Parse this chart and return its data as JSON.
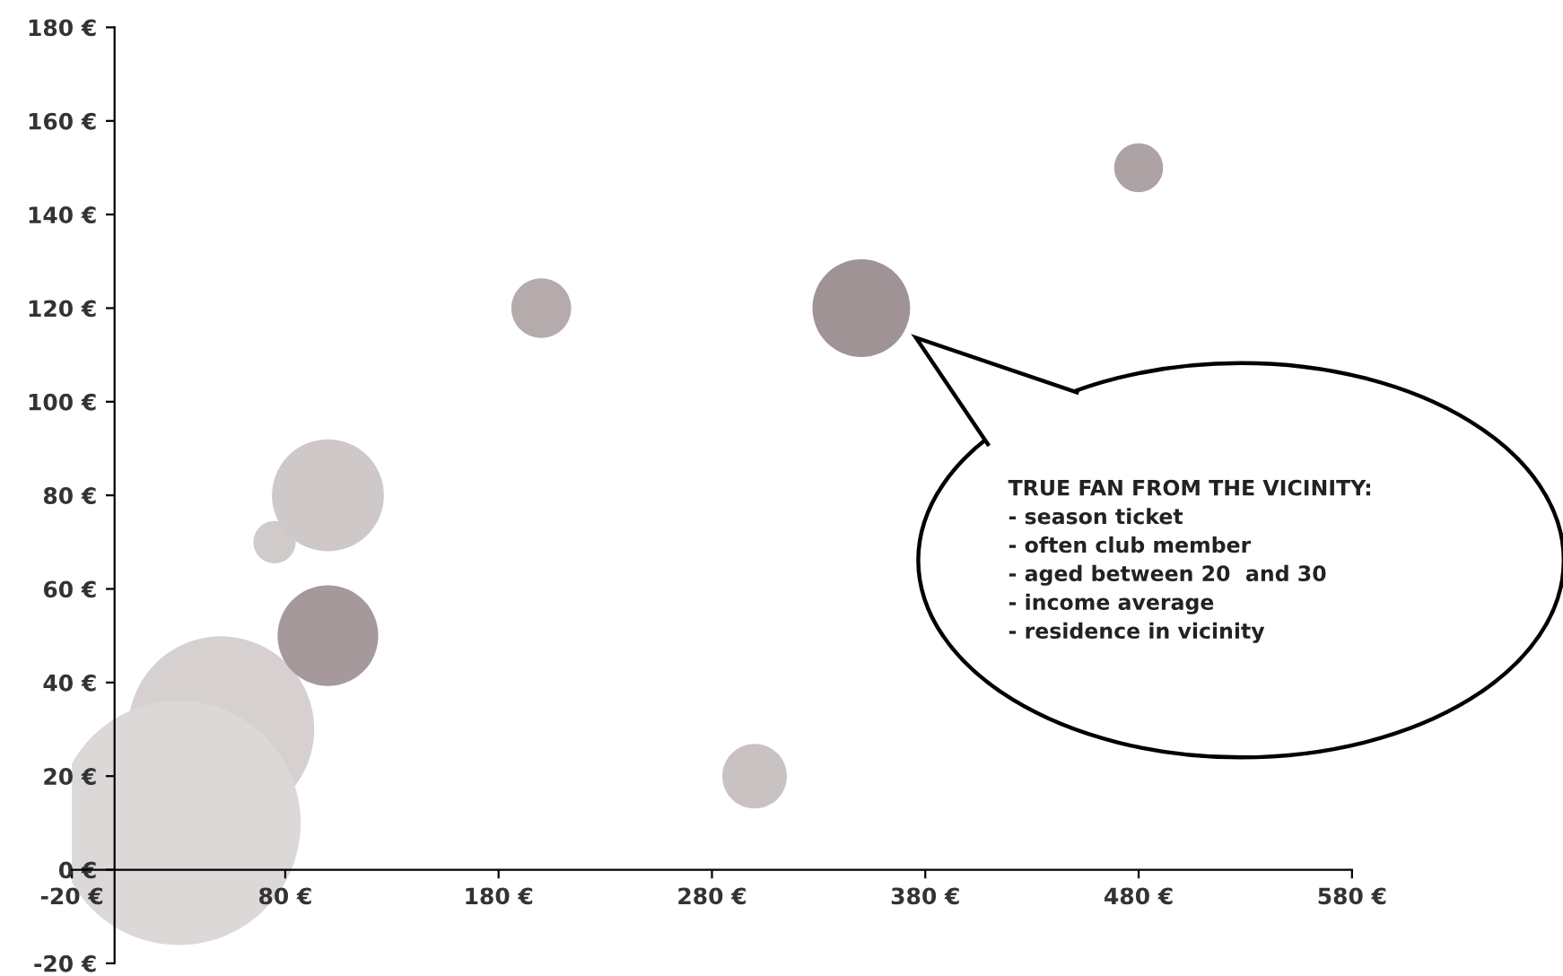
{
  "chart_data": {
    "type": "bubble",
    "x": [
      50,
      30,
      75,
      100,
      100,
      200,
      350,
      300,
      480
    ],
    "values": [
      30,
      10,
      70,
      80,
      50,
      120,
      120,
      20,
      150
    ],
    "sizes": [
      0.58,
      1,
      0.03,
      0.21,
      0.17,
      0.06,
      0.16,
      0.07,
      0.04
    ],
    "colors": [
      "#d6d0d0",
      "#dcd8d8",
      "#d0caca",
      "#cfc8c9",
      "#a5999b",
      "#b5abad",
      "#a09395",
      "#c9c2c3",
      "#ada2a4"
    ],
    "xlim": [
      -20,
      580
    ],
    "ylim": [
      -20,
      180
    ],
    "xticks": [
      {
        "value": -20,
        "label": "-20 €"
      },
      {
        "value": 80,
        "label": "80 €"
      },
      {
        "value": 180,
        "label": "180 €"
      },
      {
        "value": 280,
        "label": "280 €"
      },
      {
        "value": 380,
        "label": "380 €"
      },
      {
        "value": 480,
        "label": "480 €"
      },
      {
        "value": 580,
        "label": "580 €"
      }
    ],
    "yticks": [
      {
        "value": -20,
        "label": "-20 €"
      },
      {
        "value": 0,
        "label": "0 €"
      },
      {
        "value": 20,
        "label": "20 €"
      },
      {
        "value": 40,
        "label": "40 €"
      },
      {
        "value": 60,
        "label": "60 €"
      },
      {
        "value": 80,
        "label": "80 €"
      },
      {
        "value": 100,
        "label": "100 €"
      },
      {
        "value": 120,
        "label": "120 €"
      },
      {
        "value": 140,
        "label": "140 €"
      },
      {
        "value": 160,
        "label": "160 €"
      },
      {
        "value": 180,
        "label": "180 €"
      }
    ],
    "grid": false,
    "annotations": [
      "TRUE FAN FROM THE VICINITY:\n- season ticket\n- often club member\n- aged between 20  and 30\n- income average\n- residence in vicinity"
    ]
  }
}
